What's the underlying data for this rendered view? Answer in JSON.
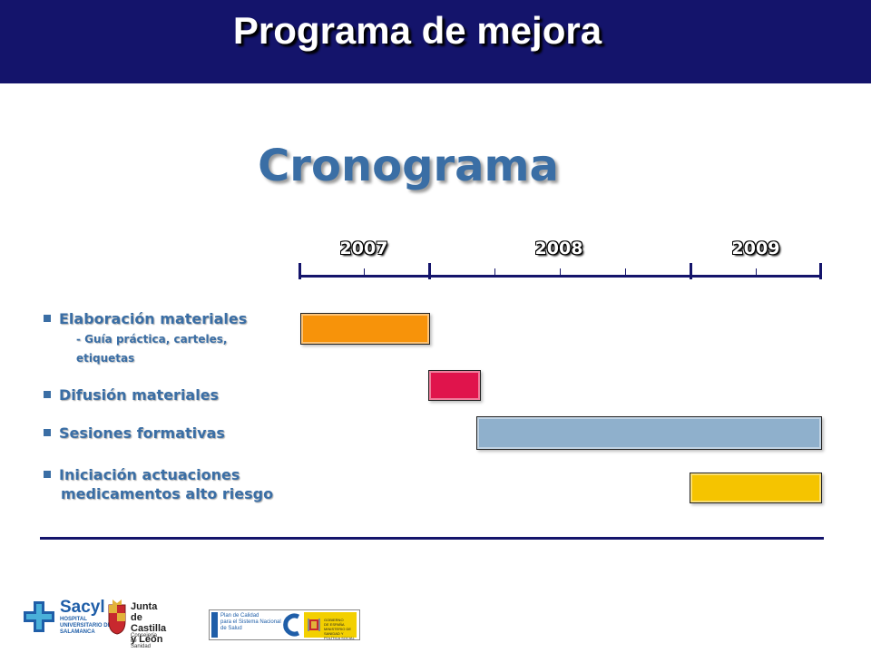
{
  "header": {
    "title": "Programa de mejora"
  },
  "subtitle": "Cronograma",
  "timeline": {
    "years": [
      "2007",
      "2008",
      "2009"
    ]
  },
  "tasks": [
    {
      "label": "Elaboración materiales",
      "sublabel_line1": "- Guía práctica, carteles,",
      "sublabel_line2": "etiquetas",
      "color": "#f7930a"
    },
    {
      "label": "Difusión materiales",
      "color": "#e0144c"
    },
    {
      "label": "Sesiones formativas",
      "color": "#8fb0cc"
    },
    {
      "label_line1": "Iniciación actuaciones",
      "label_line2": "medicamentos alto riesgo",
      "color": "#f5c400"
    }
  ],
  "logos": {
    "sacyl": {
      "name": "Sacyl",
      "sub": "HOSPITAL UNIVERSITARIO DE SALAMANCA"
    },
    "jcyl": {
      "line1": "Junta de",
      "line2": "Castilla y León",
      "sub": "Consejería de Sanidad"
    },
    "plan_calidad": {
      "line1": "Plan de Calidad",
      "line2": "para el Sistema Nacional",
      "line3": "de Salud"
    },
    "ministerio": {
      "line1": "GOBIERNO",
      "line2": "DE ESPAÑA",
      "line3": "MINISTERIO DE SANIDAD Y POLÍTICA SOCIAL"
    }
  }
}
